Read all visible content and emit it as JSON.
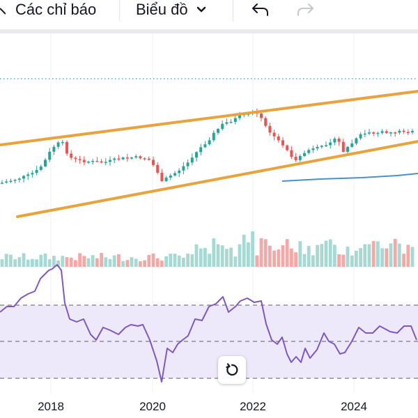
{
  "toolbar": {
    "indicators_label": "Các chỉ báo",
    "chart_label": "Biểu đồ",
    "chart_dropdown_icon": "chevron-down-icon",
    "undo_icon": "undo-icon",
    "redo_icon": "redo-icon"
  },
  "chart_data": {
    "type": "candlestick",
    "x_tick_labels": [
      "2018",
      "2020",
      "2022",
      "2024"
    ],
    "panes": [
      "price",
      "volume",
      "rsi"
    ],
    "colors": {
      "up": "#26a69a",
      "down": "#ef5350",
      "volume_up": "#a6d9d3",
      "volume_down": "#f4a9a7",
      "trendline": "#e8a33d",
      "rsi_line": "#7e57c2",
      "rsi_band": "#ede9fa",
      "ma_line": "#4a90c8"
    },
    "rsi_levels": [
      70,
      50,
      30
    ],
    "trend_channel": "upward parallel channel"
  },
  "controls": {
    "reset_icon": "reset-rotate-icon"
  }
}
